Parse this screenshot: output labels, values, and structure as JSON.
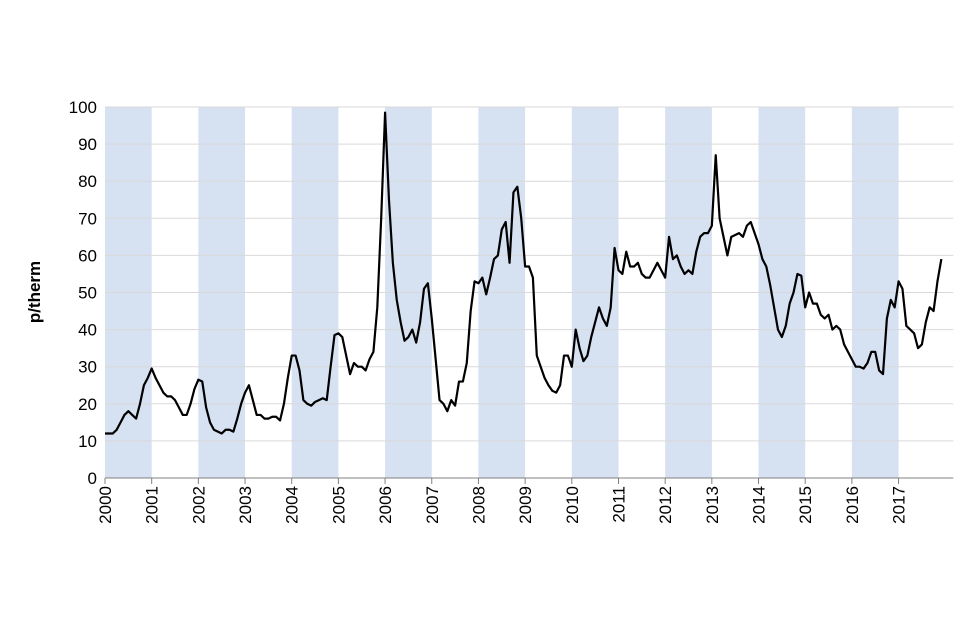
{
  "chart_data": {
    "type": "line",
    "y_label": "p/therm",
    "categories": [
      "2000",
      null,
      null,
      null,
      null,
      null,
      null,
      null,
      null,
      null,
      null,
      null,
      "2001",
      null,
      null,
      null,
      null,
      null,
      null,
      null,
      null,
      null,
      null,
      null,
      "2002",
      null,
      null,
      null,
      null,
      null,
      null,
      null,
      null,
      null,
      null,
      null,
      "2003",
      null,
      null,
      null,
      null,
      null,
      null,
      null,
      null,
      null,
      null,
      null,
      "2004",
      null,
      null,
      null,
      null,
      null,
      null,
      null,
      null,
      null,
      null,
      null,
      "2005",
      null,
      null,
      null,
      null,
      null,
      null,
      null,
      null,
      null,
      null,
      null,
      "2006",
      null,
      null,
      null,
      null,
      null,
      null,
      null,
      null,
      null,
      null,
      null,
      "2007",
      null,
      null,
      null,
      null,
      null,
      null,
      null,
      null,
      null,
      null,
      null,
      "2008",
      null,
      null,
      null,
      null,
      null,
      null,
      null,
      null,
      null,
      null,
      null,
      "2009",
      null,
      null,
      null,
      null,
      null,
      null,
      null,
      null,
      null,
      null,
      null,
      "2010",
      null,
      null,
      null,
      null,
      null,
      null,
      null,
      null,
      null,
      null,
      null,
      "2011",
      null,
      null,
      null,
      null,
      null,
      null,
      null,
      null,
      null,
      null,
      null,
      "2012",
      null,
      null,
      null,
      null,
      null,
      null,
      null,
      null,
      null,
      null,
      null,
      "2013",
      null,
      null,
      null,
      null,
      null,
      null,
      null,
      null,
      null,
      null,
      null,
      "2014",
      null,
      null,
      null,
      null,
      null,
      null,
      null,
      null,
      null,
      null,
      null,
      "2015",
      null,
      null,
      null,
      null,
      null,
      null,
      null,
      null,
      null,
      null,
      null,
      "2016",
      null,
      null,
      null,
      null,
      null,
      null,
      null,
      null,
      null,
      null,
      null,
      "2017",
      null,
      null,
      null,
      null,
      null,
      null,
      null,
      null,
      null,
      null,
      null
    ],
    "values": [
      12,
      12,
      12,
      13,
      15,
      17,
      18,
      17,
      16,
      20,
      25,
      27,
      29.5,
      27,
      25,
      23,
      22,
      22,
      21,
      19,
      17,
      17,
      20,
      24,
      26.5,
      26,
      19,
      15,
      13,
      12.5,
      12,
      13,
      13,
      12.5,
      16,
      20,
      23,
      25,
      21,
      17,
      17,
      16,
      16,
      16.5,
      16.5,
      15.5,
      20,
      27,
      33,
      33,
      29,
      21,
      20,
      19.5,
      20.5,
      21,
      21.5,
      21,
      30,
      38.5,
      39,
      38,
      33,
      28,
      31,
      30,
      30,
      29,
      32,
      34,
      46,
      70,
      98.5,
      75,
      58,
      48,
      42,
      37,
      38,
      40,
      36.5,
      42,
      51,
      52.5,
      43,
      32,
      21,
      20,
      18,
      21,
      19.5,
      26,
      26,
      31,
      45,
      53,
      52.5,
      54,
      49.5,
      54,
      59,
      60,
      67,
      69,
      58,
      77,
      78.5,
      70,
      57,
      57,
      54,
      33,
      30,
      27,
      25,
      23.5,
      23,
      25,
      33,
      33,
      30,
      40,
      35,
      31.5,
      33,
      38,
      42,
      46,
      43,
      41,
      46,
      62,
      56,
      55,
      61,
      57,
      57,
      58,
      55,
      54,
      54,
      56,
      58,
      56,
      54,
      65,
      59,
      60,
      57,
      55,
      56,
      55,
      61,
      65,
      66,
      66,
      68,
      87,
      70,
      65,
      60,
      65,
      65.5,
      66,
      65,
      68,
      69,
      66,
      63,
      59,
      57,
      52,
      46,
      40,
      38,
      41,
      47,
      50,
      55,
      54.5,
      46,
      50,
      47,
      47,
      44,
      43,
      44,
      40,
      41,
      40,
      36,
      34,
      32,
      30,
      30,
      29.5,
      31,
      34,
      34,
      29,
      28,
      43,
      48,
      46,
      53,
      51,
      41,
      40,
      39,
      35,
      36,
      42,
      46,
      45,
      53,
      59
    ],
    "color": "#000000",
    "band_color": "#d6e1f1",
    "ylim": [
      0,
      100
    ],
    "yticks": [
      0,
      10,
      20,
      30,
      40,
      50,
      60,
      70,
      80,
      90,
      100
    ],
    "grid": true
  }
}
